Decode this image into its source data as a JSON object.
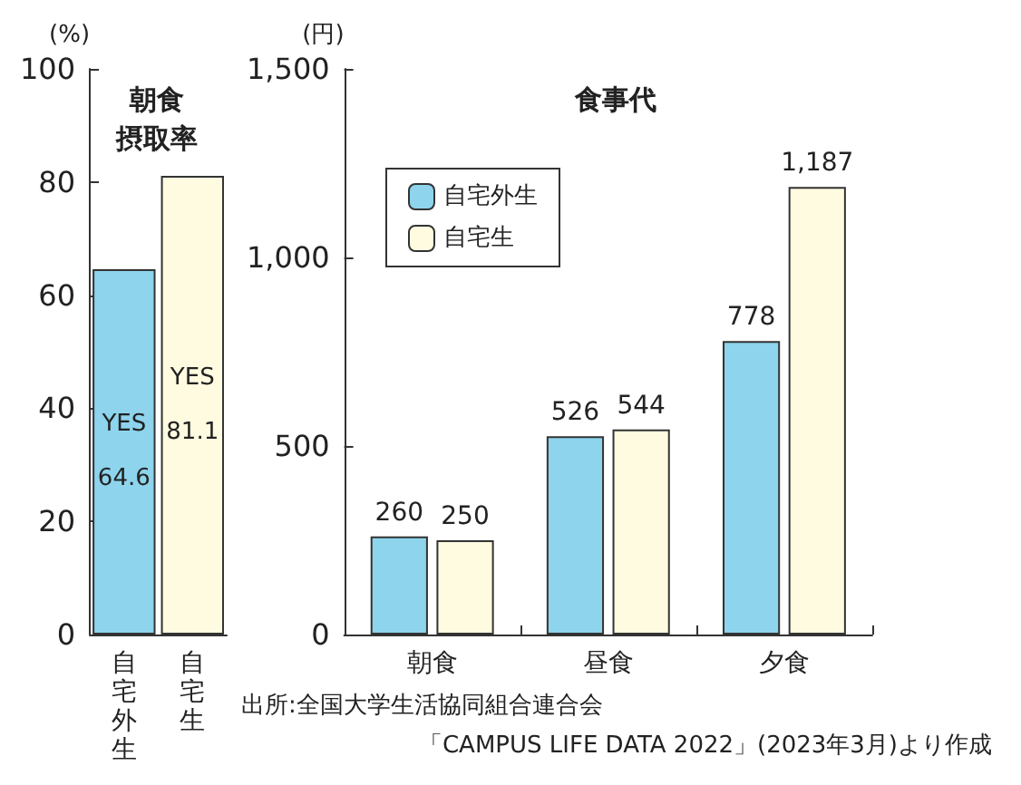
{
  "chart_data": [
    {
      "type": "bar",
      "title": "朝食",
      "subtitle": "摂取率",
      "ylabel": "(%)",
      "categories": [
        "自宅外生",
        "自宅生"
      ],
      "values": [
        64.6,
        81.1
      ],
      "colors": [
        "#8dd4ec",
        "#fffbe0"
      ],
      "value_labels": [
        "YES\n64.6",
        "YES\n81.1"
      ],
      "ylim": [
        0,
        100
      ],
      "yticks": [
        0,
        20,
        40,
        60,
        80,
        100
      ],
      "grid": false,
      "legend": false
    },
    {
      "type": "bar",
      "title": "食事代",
      "ylabel": "(円)",
      "categories": [
        "朝食",
        "昼食",
        "夕食"
      ],
      "series": [
        {
          "name": "自宅外生",
          "color": "#8dd4ec",
          "values": [
            260,
            526,
            778
          ],
          "value_labels": [
            "260",
            "526",
            "778"
          ]
        },
        {
          "name": "自宅生",
          "color": "#fffbe0",
          "values": [
            250,
            544,
            1187
          ],
          "value_labels": [
            "250",
            "544",
            "1,187"
          ]
        }
      ],
      "ylim": [
        0,
        1500
      ],
      "yticks": [
        0,
        500,
        {
          "value": 1000,
          "label": "1,000"
        },
        {
          "value": 1500,
          "label": "1,500"
        }
      ],
      "grid": false,
      "legend": "top left",
      "annotations": [
        "出所:全国大学生活協同組合連合会",
        "「CAMPUS LIFE DATA 2022」(2023年3月)より作成"
      ]
    }
  ]
}
